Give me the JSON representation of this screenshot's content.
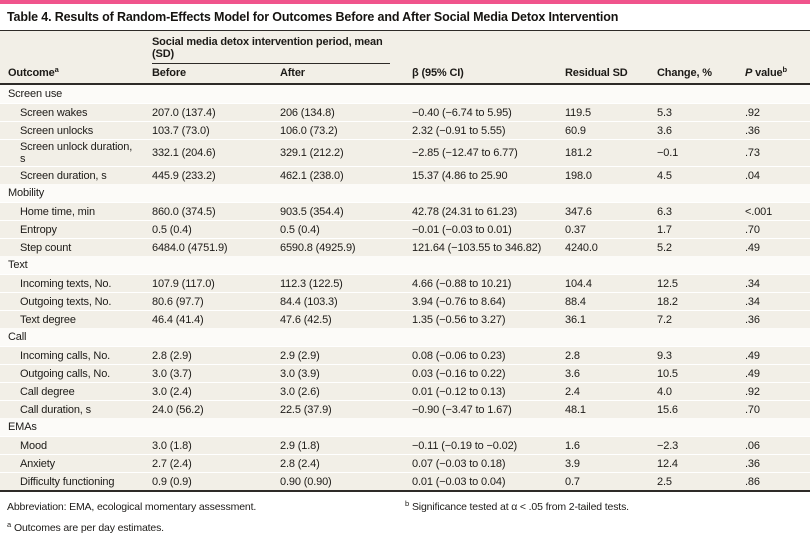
{
  "accent_color": "#F0548C",
  "title": "Table 4. Results of Random-Effects Model for Outcomes Before and After Social Media Detox Intervention",
  "header": {
    "outcome_label": "Outcome",
    "outcome_sup": "a",
    "spanner": "Social media detox intervention period, mean (SD)",
    "before": "Before",
    "after": "After",
    "beta": "β (95% CI)",
    "residual_sd": "Residual SD",
    "change": "Change, %",
    "p_italic": "P",
    "p_rest": " value",
    "p_sup": "b"
  },
  "sections": [
    {
      "label": "Screen use",
      "rows": [
        {
          "outcome": "Screen wakes",
          "before": "207.0 (137.4)",
          "after": "206 (134.8)",
          "beta": "−0.40 (−6.74 to 5.95)",
          "residual_sd": "119.5",
          "change": "5.3",
          "p": ".92"
        },
        {
          "outcome": "Screen unlocks",
          "before": "103.7 (73.0)",
          "after": "106.0 (73.2)",
          "beta": "2.32 (−0.91 to 5.55)",
          "residual_sd": "60.9",
          "change": "3.6",
          "p": ".36"
        },
        {
          "outcome": "Screen unlock duration, s",
          "before": "332.1 (204.6)",
          "after": "329.1 (212.2)",
          "beta": "−2.85 (−12.47 to 6.77)",
          "residual_sd": "181.2",
          "change": "−0.1",
          "p": ".73"
        },
        {
          "outcome": "Screen duration, s",
          "before": "445.9 (233.2)",
          "after": "462.1 (238.0)",
          "beta": "15.37 (4.86 to 25.90",
          "residual_sd": "198.0",
          "change": "4.5",
          "p": ".04"
        }
      ]
    },
    {
      "label": "Mobility",
      "rows": [
        {
          "outcome": "Home time, min",
          "before": "860.0 (374.5)",
          "after": "903.5 (354.4)",
          "beta": "42.78 (24.31 to 61.23)",
          "residual_sd": "347.6",
          "change": "6.3",
          "p": "<.001"
        },
        {
          "outcome": "Entropy",
          "before": "0.5 (0.4)",
          "after": "0.5 (0.4)",
          "beta": "−0.01 (−0.03 to 0.01)",
          "residual_sd": "0.37",
          "change": "1.7",
          "p": ".70"
        },
        {
          "outcome": "Step count",
          "before": "6484.0 (4751.9)",
          "after": "6590.8 (4925.9)",
          "beta": "121.64 (−103.55 to 346.82)",
          "residual_sd": "4240.0",
          "change": "5.2",
          "p": ".49"
        }
      ]
    },
    {
      "label": "Text",
      "rows": [
        {
          "outcome": "Incoming texts, No.",
          "before": "107.9 (117.0)",
          "after": "112.3 (122.5)",
          "beta": "4.66 (−0.88 to 10.21)",
          "residual_sd": "104.4",
          "change": "12.5",
          "p": ".34"
        },
        {
          "outcome": "Outgoing texts, No.",
          "before": "80.6 (97.7)",
          "after": "84.4 (103.3)",
          "beta": "3.94 (−0.76 to 8.64)",
          "residual_sd": "88.4",
          "change": "18.2",
          "p": ".34"
        },
        {
          "outcome": "Text degree",
          "before": "46.4 (41.4)",
          "after": "47.6 (42.5)",
          "beta": "1.35 (−0.56 to 3.27)",
          "residual_sd": "36.1",
          "change": "7.2",
          "p": ".36"
        }
      ]
    },
    {
      "label": "Call",
      "rows": [
        {
          "outcome": "Incoming calls, No.",
          "before": "2.8 (2.9)",
          "after": "2.9 (2.9)",
          "beta": "0.08 (−0.06 to 0.23)",
          "residual_sd": "2.8",
          "change": "9.3",
          "p": ".49"
        },
        {
          "outcome": "Outgoing calls, No.",
          "before": "3.0 (3.7)",
          "after": "3.0 (3.9)",
          "beta": "0.03 (−0.16 to 0.22)",
          "residual_sd": "3.6",
          "change": "10.5",
          "p": ".49"
        },
        {
          "outcome": "Call degree",
          "before": "3.0 (2.4)",
          "after": "3.0 (2.6)",
          "beta": "0.01 (−0.12 to 0.13)",
          "residual_sd": "2.4",
          "change": "4.0",
          "p": ".92"
        },
        {
          "outcome": "Call duration, s",
          "before": "24.0 (56.2)",
          "after": "22.5 (37.9)",
          "beta": "−0.90 (−3.47 to 1.67)",
          "residual_sd": "48.1",
          "change": "15.6",
          "p": ".70"
        }
      ]
    },
    {
      "label": "EMAs",
      "rows": [
        {
          "outcome": "Mood",
          "before": "3.0 (1.8)",
          "after": "2.9 (1.8)",
          "beta": "−0.11 (−0.19 to −0.02)",
          "residual_sd": "1.6",
          "change": "−2.3",
          "p": ".06"
        },
        {
          "outcome": "Anxiety",
          "before": "2.7 (2.4)",
          "after": "2.8 (2.4)",
          "beta": "0.07 (−0.03 to 0.18)",
          "residual_sd": "3.9",
          "change": "12.4",
          "p": ".36"
        },
        {
          "outcome": "Difficulty functioning",
          "before": "0.9 (0.9)",
          "after": "0.90 (0.90)",
          "beta": "0.01 (−0.03 to 0.04)",
          "residual_sd": "0.7",
          "change": "2.5",
          "p": ".86"
        }
      ]
    }
  ],
  "footnotes": {
    "abbreviation": "Abbreviation: EMA, ecological momentary assessment.",
    "a_marker": "a",
    "a_text": "Outcomes are per day estimates.",
    "b_marker": "b",
    "b_text": "Significance tested at α < .05 from 2-tailed tests."
  }
}
